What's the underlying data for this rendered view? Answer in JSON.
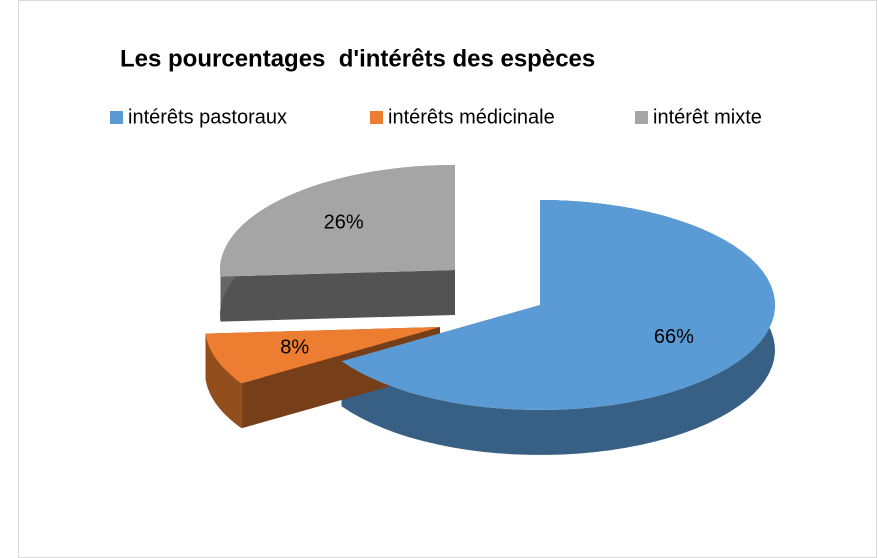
{
  "chart_data": {
    "type": "pie",
    "title": "Les pourcentages  d'intérêts des espèces",
    "categories": [
      "intérêts pastoraux",
      "intérêts médicinale",
      "intérêt mixte"
    ],
    "values": [
      66,
      8,
      26
    ],
    "value_labels": [
      "66%",
      "8%",
      "26%"
    ],
    "colors": [
      "#5b9bd5",
      "#ed7d31",
      "#a5a5a5"
    ],
    "legend": "top"
  }
}
